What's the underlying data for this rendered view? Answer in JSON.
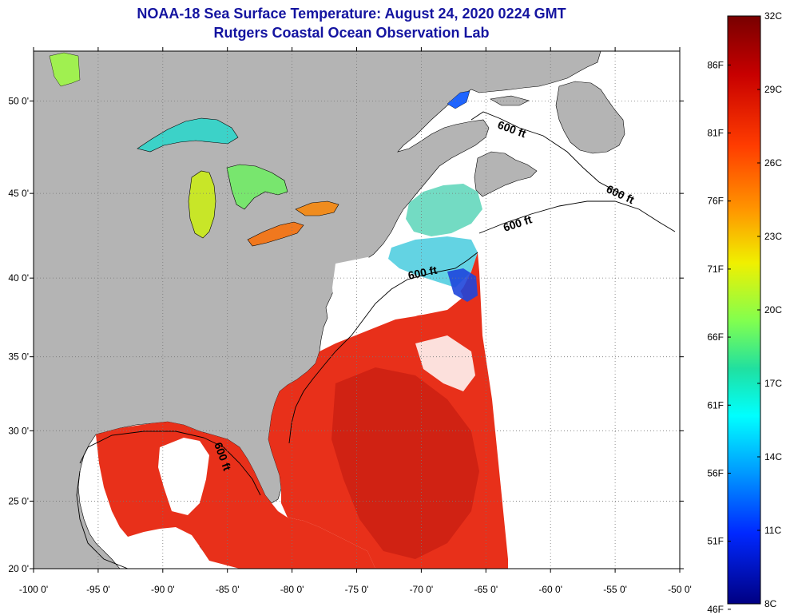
{
  "title": "NOAA-18 Sea Surface Temperature:  August 24, 2020 0224 GMT",
  "subtitle": "Rutgers Coastal Ocean Observation Lab",
  "lat_ticks": [
    {
      "label": "50 0'",
      "lat": 50
    },
    {
      "label": "45 0'",
      "lat": 45
    },
    {
      "label": "40 0'",
      "lat": 40
    },
    {
      "label": "35 0'",
      "lat": 35
    },
    {
      "label": "30 0'",
      "lat": 30
    },
    {
      "label": "25 0'",
      "lat": 25
    },
    {
      "label": "20 0'",
      "lat": 20
    }
  ],
  "lon_ticks": [
    {
      "label": "-100 0'",
      "lon": -100
    },
    {
      "label": "-95 0'",
      "lon": -95
    },
    {
      "label": "-90 0'",
      "lon": -90
    },
    {
      "label": "-85 0'",
      "lon": -85
    },
    {
      "label": "-80 0'",
      "lon": -80
    },
    {
      "label": "-75 0'",
      "lon": -75
    },
    {
      "label": "-70 0'",
      "lon": -70
    },
    {
      "label": "-65 0'",
      "lon": -65
    },
    {
      "label": "-60 0'",
      "lon": -60
    },
    {
      "label": "-55 0'",
      "lon": -55
    },
    {
      "label": "-50 0'",
      "lon": -50
    }
  ],
  "contour_labels": [
    "600 ft",
    "600 ft",
    "600 ft",
    "600 ft",
    "600 ft"
  ],
  "colorbar": {
    "celsius": [
      {
        "label": "32C",
        "value": 32
      },
      {
        "label": "29C",
        "value": 29
      },
      {
        "label": "26C",
        "value": 26
      },
      {
        "label": "23C",
        "value": 23
      },
      {
        "label": "20C",
        "value": 20
      },
      {
        "label": "17C",
        "value": 17
      },
      {
        "label": "14C",
        "value": 14
      },
      {
        "label": "11C",
        "value": 11
      },
      {
        "label": "8C",
        "value": 8
      }
    ],
    "fahrenheit": [
      {
        "label": "86F",
        "value": 86
      },
      {
        "label": "81F",
        "value": 81
      },
      {
        "label": "76F",
        "value": 76
      },
      {
        "label": "71F",
        "value": 71
      },
      {
        "label": "66F",
        "value": 66
      },
      {
        "label": "61F",
        "value": 61
      },
      {
        "label": "56F",
        "value": 56
      },
      {
        "label": "51F",
        "value": 51
      },
      {
        "label": "46F",
        "value": 46
      }
    ],
    "min_c": 8,
    "max_c": 32
  },
  "colors": {
    "land": "#b4b4b4",
    "water_nodata": "#ffffff",
    "title": "#1414a0",
    "warm": "#e8301a",
    "hot": "#c81e12"
  }
}
